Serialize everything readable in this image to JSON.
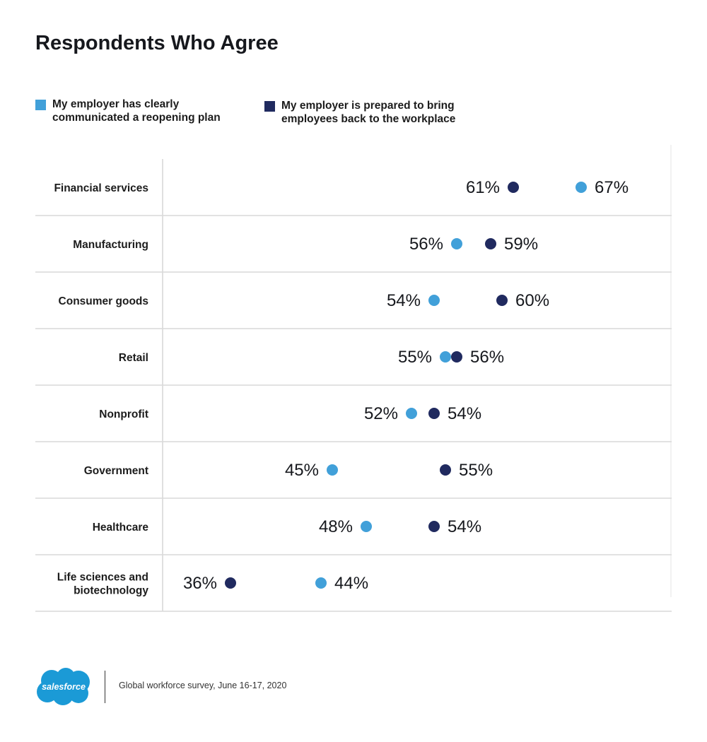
{
  "chart_data": {
    "type": "scatter",
    "title": "Respondents Who Agree",
    "series": [
      {
        "name": "My employer has clearly communicated a reopening plan",
        "color": "#41a0d9",
        "values": [
          67,
          56,
          54,
          55,
          52,
          45,
          48,
          44
        ]
      },
      {
        "name": "My employer is prepared to bring employees back to the workplace",
        "color": "#202a5f",
        "values": [
          61,
          59,
          60,
          56,
          54,
          55,
          54,
          36
        ]
      }
    ],
    "categories": [
      "Financial services",
      "Manufacturing",
      "Consumer goods",
      "Retail",
      "Nonprofit",
      "Government",
      "Healthcare",
      "Life sciences and biotechnology"
    ],
    "value_suffix": "%",
    "xlabel": "",
    "ylabel": "",
    "grid": true
  },
  "legend": {
    "item1_line1": "My employer has clearly",
    "item1_line2": "communicated a reopening plan",
    "item2_line1": "My employer is prepared to bring",
    "item2_line2": "employees back to the workplace"
  },
  "footer": {
    "brand": "salesforce",
    "source": "Global workforce survey, June 16-17, 2020"
  }
}
